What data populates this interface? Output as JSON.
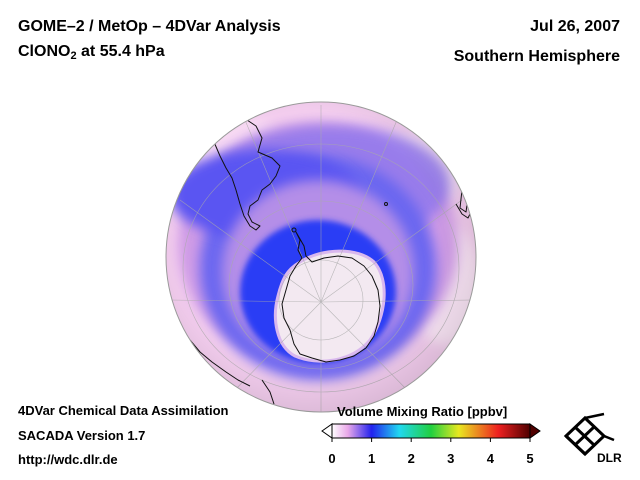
{
  "header": {
    "title_line_1": "GOME–2 / MetOp – 4DVar Analysis",
    "species_prefix": "ClONO",
    "species_subscript": "2",
    "species_suffix": " at 55.4 hPa",
    "date": "Jul 26, 2007",
    "region": "Southern Hemisphere"
  },
  "footer": {
    "line_1": "4DVar Chemical Data Assimilation",
    "line_2": "SACADA Version 1.7",
    "line_3": "http://wdc.dlr.de"
  },
  "legend": {
    "title": "Volume Mixing Ratio [ppbv]",
    "ticks": [
      "0",
      "1",
      "2",
      "3",
      "4",
      "5"
    ],
    "colors": [
      "#ffffff",
      "#e9a8e9",
      "#2222ee",
      "#20d8f0",
      "#20d040",
      "#e8e820",
      "#ee2020",
      "#500000"
    ]
  },
  "logo": {
    "text": "DLR"
  }
}
